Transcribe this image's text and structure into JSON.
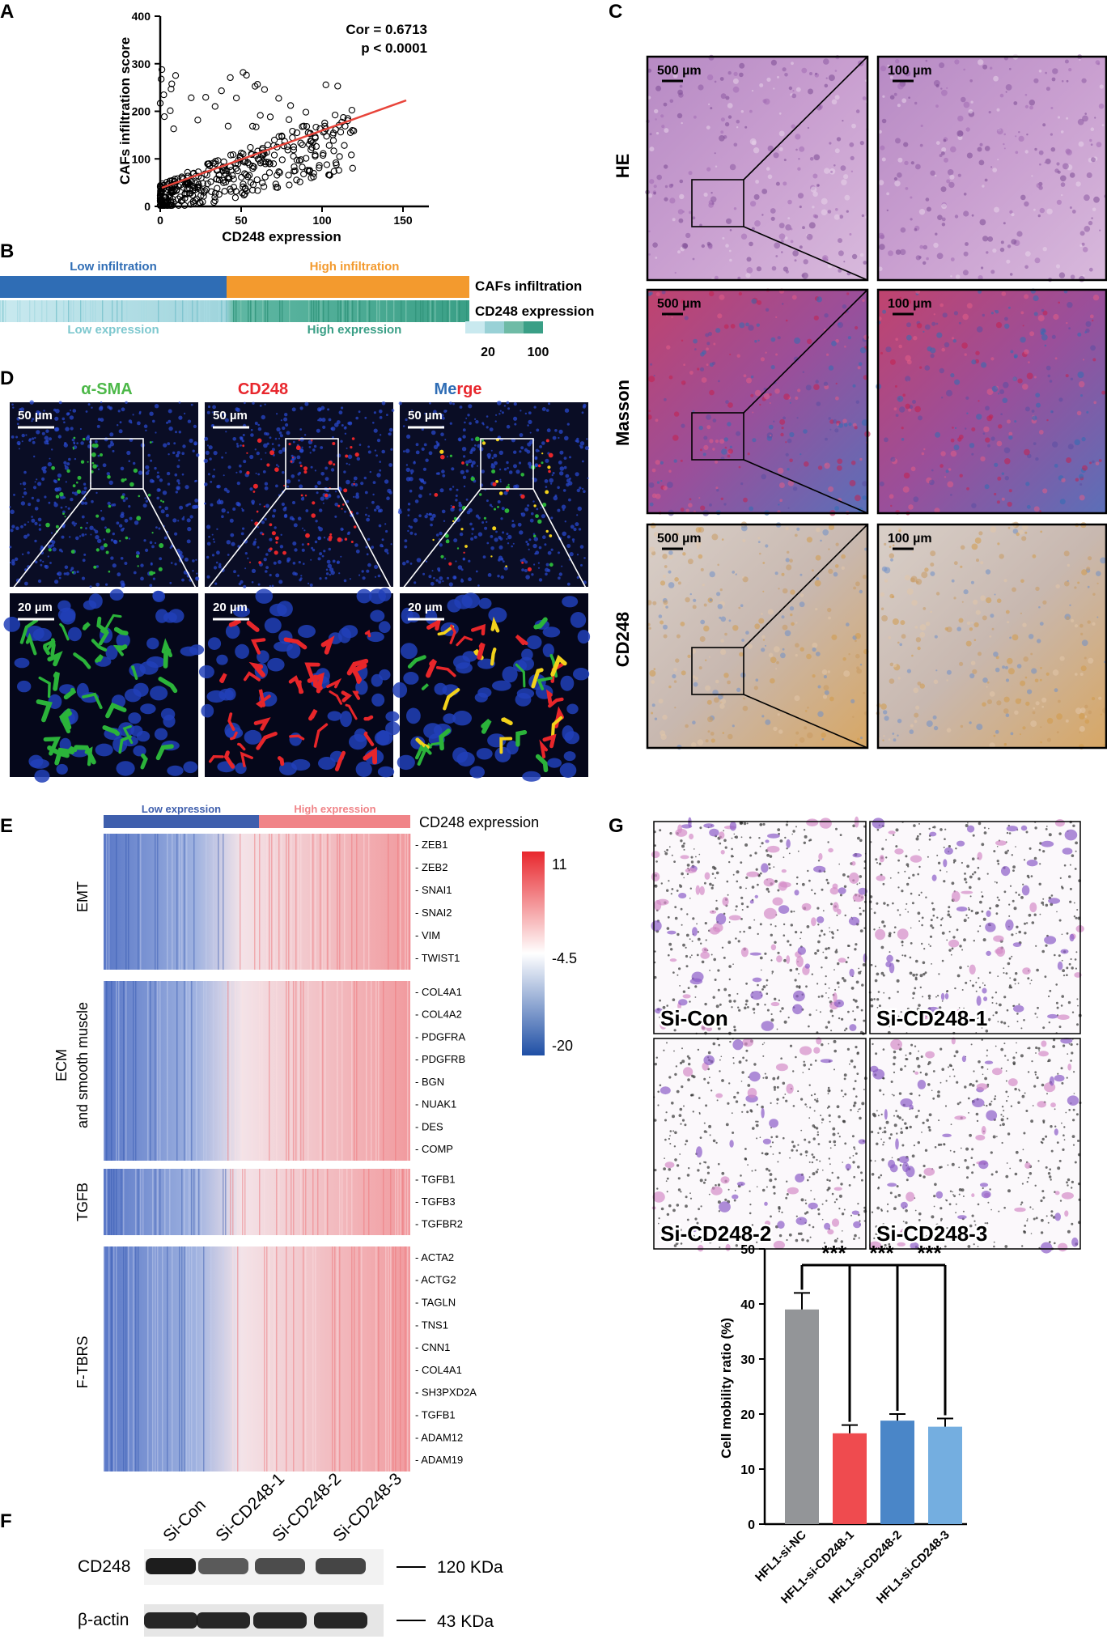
{
  "panels": {
    "A": "A",
    "B": "B",
    "C": "C",
    "D": "D",
    "E": "E",
    "F": "F",
    "G": "G"
  },
  "panelA": {
    "ylabel": "CAFs infiltration score",
    "xlabel": "CD248 expression",
    "cor": "Cor = 0.6713",
    "p": "p < 0.0001",
    "xticks": [
      "0",
      "50",
      "100",
      "150"
    ],
    "yticks": [
      "0",
      "100",
      "200",
      "300",
      "400"
    ]
  },
  "panelB": {
    "low_infiltration": "Low infiltration",
    "high_infiltration": "High infiltration",
    "row1": "CAFs infiltration",
    "row2": "CD248 expression",
    "low_expression": "Low expression",
    "high_expression": "High expression",
    "scale_low": "20",
    "scale_high": "100",
    "colors": {
      "low": "#2f6db5",
      "high": "#f39a2e",
      "teal_light": "#c8e8ef",
      "teal_dark": "#3aa486"
    }
  },
  "panelC": {
    "rows": [
      "HE",
      "Masson",
      "CD248"
    ],
    "scale_big": "500 µm",
    "scale_small": "100 µm"
  },
  "panelD": {
    "headers": [
      "α-SMA",
      "CD248",
      "Me",
      "r",
      "ge"
    ],
    "scale_top": "50 µm",
    "scale_bottom": "20 µm"
  },
  "panelE": {
    "low_expression": "Low expression",
    "high_expression": "High expression",
    "header": "CD248 expression",
    "groups": [
      "EMT",
      "ECM",
      "and smooth muscle",
      "TGFB",
      "F-TBRS"
    ],
    "genes_emt": [
      "ZEB1",
      "ZEB2",
      "SNAI1",
      "SNAI2",
      "VIM",
      "TWIST1"
    ],
    "genes_ecm": [
      "COL4A1",
      "COL4A2",
      "PDGFRA",
      "PDGFRB",
      "BGN",
      "NUAK1",
      "DES",
      "COMP"
    ],
    "genes_tgfb": [
      "TGFB1",
      "TGFB3",
      "TGFBR2"
    ],
    "genes_ftbrs": [
      "ACTA2",
      "ACTG2",
      "TAGLN",
      "TNS1",
      "CNN1",
      "COL4A1",
      "SH3PXD2A",
      "TGFB1",
      "ADAM12",
      "ADAM19"
    ],
    "scale": [
      "11",
      "-4.5",
      "-20"
    ]
  },
  "panelF": {
    "lanes": [
      "Si-Con",
      "Si-CD248-1",
      "Si-CD248-2",
      "Si-CD248-3"
    ],
    "bands": [
      "CD248",
      "β-actin"
    ],
    "sizes": [
      "120 KDa",
      "43 KDa"
    ]
  },
  "panelG": {
    "images": [
      "Si-Con",
      "Si-CD248-1",
      "Si-CD248-2",
      "Si-CD248-3"
    ],
    "stars": "***"
  },
  "chart_data": {
    "type": "bar",
    "categories": [
      "HFL1-si-NC",
      "HFL1-si-CD248-1",
      "HFL1-si-CD248-2",
      "HFL1-si-CD248-3"
    ],
    "values": [
      39,
      16.5,
      18.8,
      17.7
    ],
    "errors": [
      3,
      1.5,
      1.2,
      1.5
    ],
    "ylabel": "Cell mobility ratio (%)",
    "ylim": [
      0,
      50
    ],
    "yticks": [
      "0",
      "10",
      "20",
      "30",
      "40",
      "50"
    ],
    "colors": [
      "#939598",
      "#ef4b4f",
      "#4a86c8",
      "#74aee0"
    ]
  }
}
